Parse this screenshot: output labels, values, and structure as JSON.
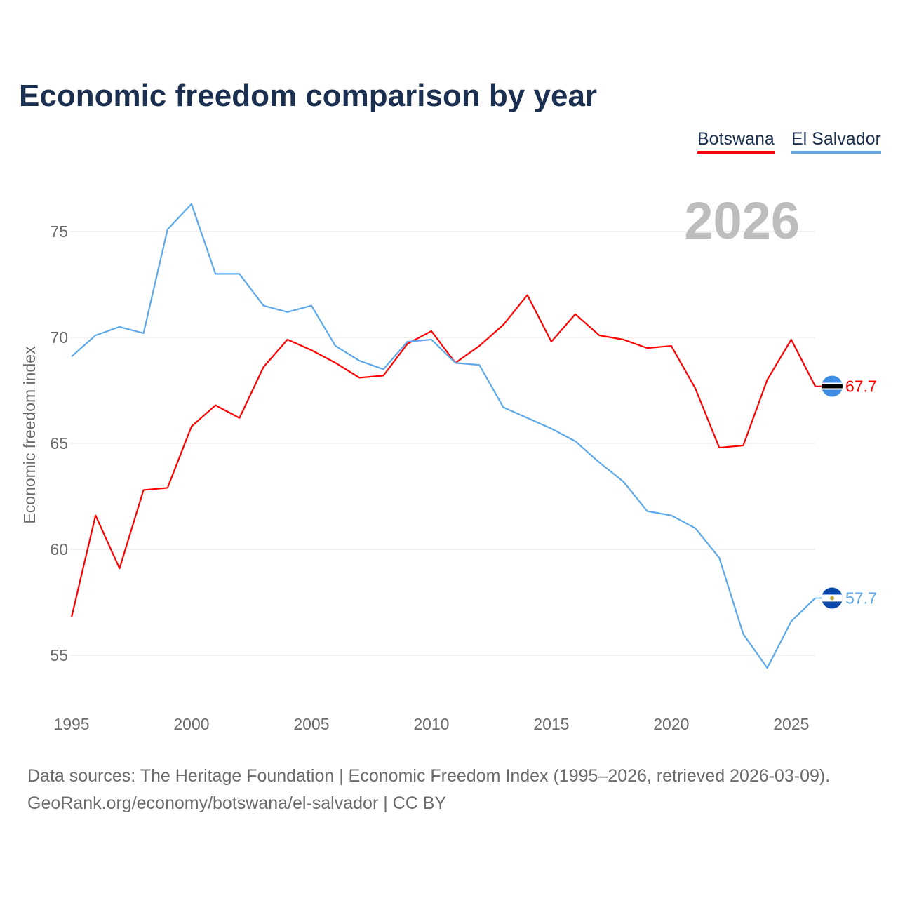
{
  "title": "Economic freedom comparison by year",
  "legend": [
    {
      "name": "Botswana",
      "color": "#ff0000"
    },
    {
      "name": "El Salvador",
      "color": "#5da8ea"
    }
  ],
  "year_watermark": "2026",
  "footer": {
    "line1": "Data sources: The Heritage Foundation | Economic Freedom Index (1995–2026, retrieved 2026-03-09).",
    "line2": "GeoRank.org/economy/botswana/el-salvador | CC BY"
  },
  "chart_data": {
    "type": "line",
    "title": "Economic freedom comparison by year",
    "xlabel": "",
    "ylabel": "Economic freedom index",
    "xlim": [
      1995,
      2026
    ],
    "ylim": [
      52.8,
      77.5
    ],
    "x_ticks": [
      1995,
      2000,
      2005,
      2010,
      2015,
      2020,
      2025
    ],
    "y_ticks": [
      55,
      60,
      65,
      70,
      75
    ],
    "grid": true,
    "legend_position": "top-right",
    "x": [
      1995,
      1996,
      1997,
      1998,
      1999,
      2000,
      2001,
      2002,
      2003,
      2004,
      2005,
      2006,
      2007,
      2008,
      2009,
      2010,
      2011,
      2012,
      2013,
      2014,
      2015,
      2016,
      2017,
      2018,
      2019,
      2020,
      2021,
      2022,
      2023,
      2024,
      2025,
      2026
    ],
    "series": [
      {
        "name": "Botswana",
        "color": "#ff0000",
        "end_label": "67.7",
        "values": [
          56.8,
          61.6,
          59.1,
          62.8,
          62.9,
          65.8,
          66.8,
          66.2,
          68.6,
          69.9,
          69.4,
          68.8,
          68.1,
          68.2,
          69.7,
          70.3,
          68.8,
          69.6,
          70.6,
          72.0,
          69.8,
          71.1,
          70.1,
          69.9,
          69.5,
          69.6,
          67.6,
          64.8,
          64.9,
          68.0,
          69.9,
          67.7
        ]
      },
      {
        "name": "El Salvador",
        "color": "#5da8ea",
        "end_label": "57.7",
        "values": [
          69.1,
          70.1,
          70.5,
          70.2,
          75.1,
          76.3,
          73.0,
          73.0,
          71.5,
          71.2,
          71.5,
          69.6,
          68.9,
          68.5,
          69.8,
          69.9,
          68.8,
          68.7,
          66.7,
          66.2,
          65.7,
          65.1,
          64.1,
          63.2,
          61.8,
          61.6,
          61.0,
          59.6,
          56.0,
          54.4,
          56.6,
          57.7
        ]
      }
    ]
  }
}
